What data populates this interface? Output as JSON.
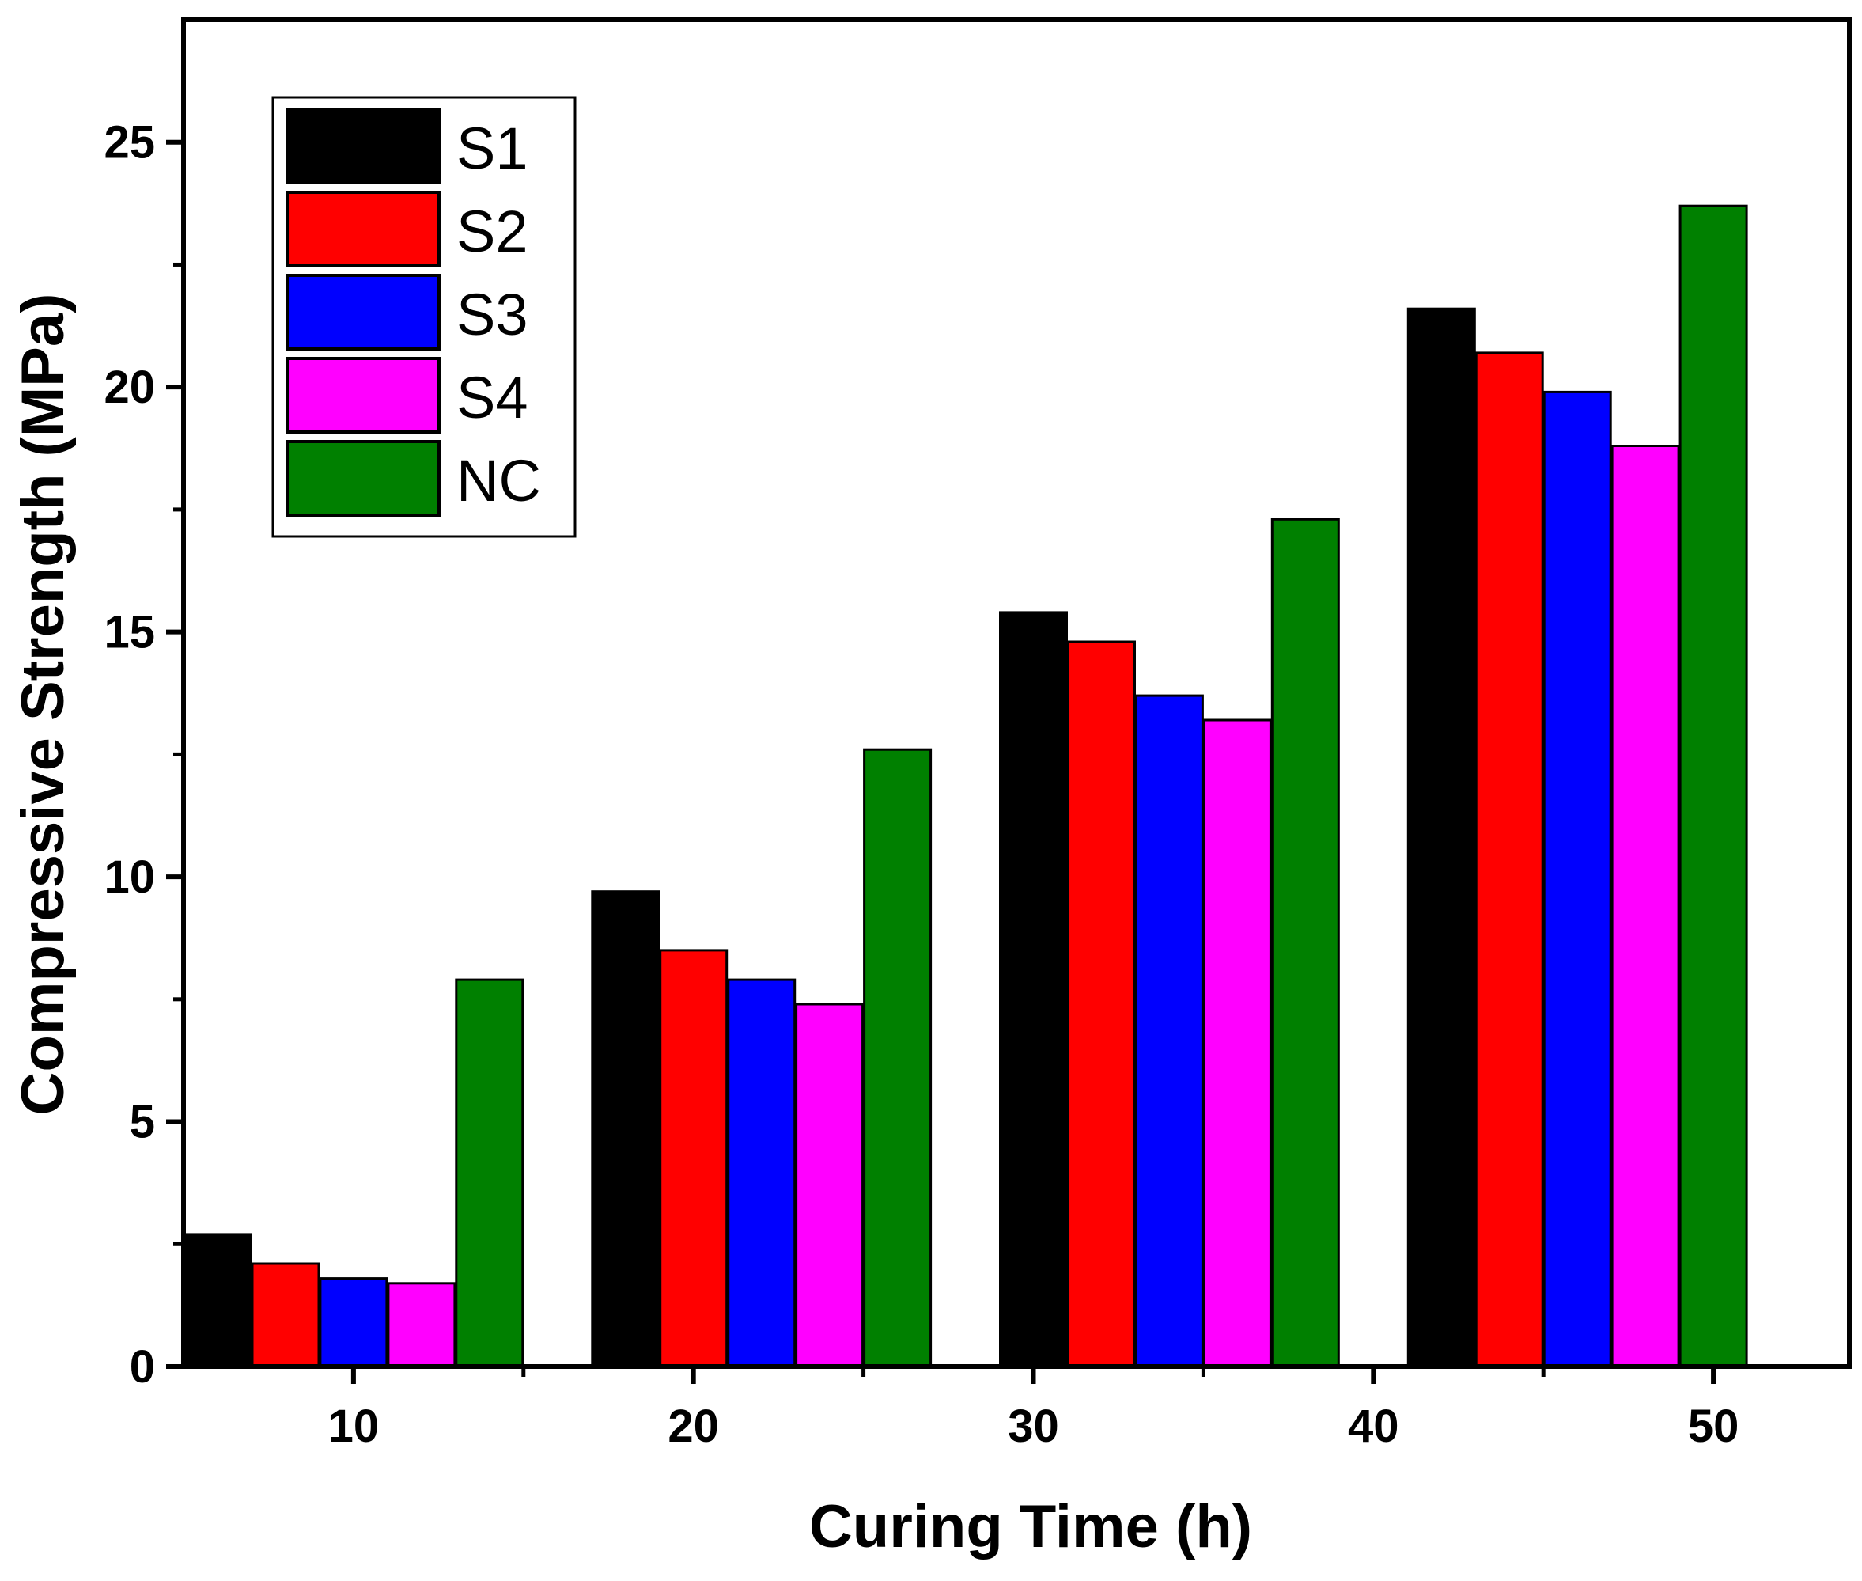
{
  "chart_data": {
    "type": "bar",
    "title": "",
    "xlabel": "Curing Time (h)",
    "ylabel": "Compressive Strength (MPa)",
    "ylim": [
      0,
      27.5
    ],
    "yticks": [
      0,
      5,
      10,
      15,
      20,
      25
    ],
    "x_range": [
      5,
      54
    ],
    "xticks": [
      10,
      20,
      30,
      40,
      50
    ],
    "legend_position": "top-left",
    "grid": false,
    "groups": [
      {
        "category": "10",
        "x": 10
      },
      {
        "category": "20",
        "x": 22
      },
      {
        "category": "30",
        "x": 34
      },
      {
        "category": "40",
        "x": 46
      }
    ],
    "series": [
      {
        "name": "S1",
        "color": "#000000",
        "values": [
          2.7,
          9.7,
          15.4,
          21.6
        ]
      },
      {
        "name": "S2",
        "color": "#ff0000",
        "values": [
          2.1,
          8.5,
          14.8,
          20.7
        ]
      },
      {
        "name": "S3",
        "color": "#0000ff",
        "values": [
          1.8,
          7.9,
          13.7,
          19.9
        ]
      },
      {
        "name": "S4",
        "color": "#ff00ff",
        "values": [
          1.7,
          7.4,
          13.2,
          18.8
        ]
      },
      {
        "name": "NC",
        "color": "#008000",
        "values": [
          7.9,
          12.6,
          17.3,
          23.7
        ]
      }
    ]
  }
}
